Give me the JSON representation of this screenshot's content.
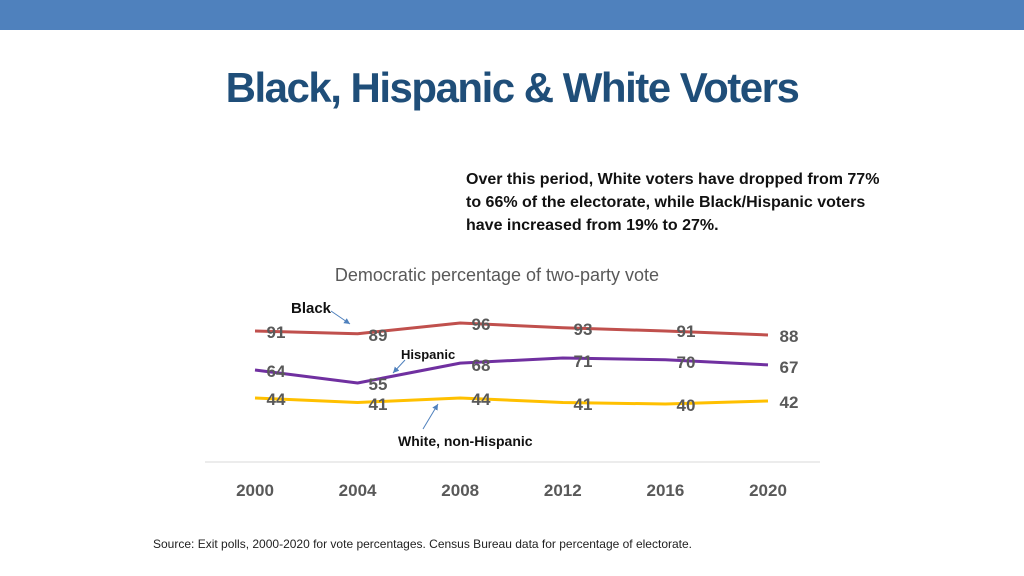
{
  "slide": {
    "title": "Black, Hispanic & White Voters",
    "note": "Over this period, White voters have dropped from 77% to 66% of the electorate, while Black/Hispanic voters have increased from 19% to 27%.",
    "source": "Source: Exit polls, 2000-2020 for vote percentages. Census Bureau data for percentage of electorate."
  },
  "colors": {
    "band": "#4f81bd",
    "title": "#1f4e79",
    "black_series": "#c0504d",
    "hispanic_series": "#7030a0",
    "white_series": "#ffc000",
    "label_text": "#595959",
    "arrow": "#4f81bd"
  },
  "chart_data": {
    "type": "line",
    "title": "Democratic percentage of two-party vote",
    "categories": [
      "2000",
      "2004",
      "2008",
      "2012",
      "2016",
      "2020"
    ],
    "ylim": [
      30,
      100
    ],
    "grid": false,
    "series": [
      {
        "name": "Black",
        "color": "#c0504d",
        "values": [
          91,
          89,
          96,
          93,
          91,
          88
        ]
      },
      {
        "name": "Hispanic",
        "color": "#7030a0",
        "values": [
          64,
          55,
          68,
          71,
          70,
          67
        ]
      },
      {
        "name": "White, non-Hispanic",
        "color": "#ffc000",
        "values": [
          44,
          41,
          44,
          41,
          40,
          42
        ]
      }
    ]
  }
}
